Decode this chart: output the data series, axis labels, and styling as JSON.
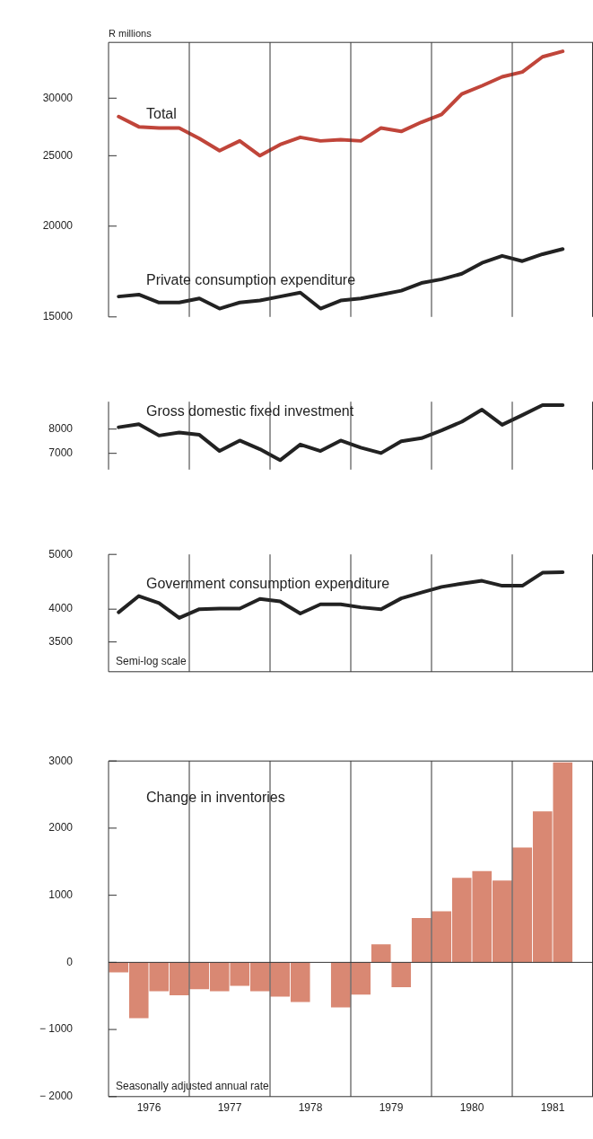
{
  "chart_data": [
    {
      "type": "line",
      "ylabel": "R millions",
      "log": true,
      "tick_labels": "y",
      "xlim": [
        1976,
        1982
      ],
      "ylim": [
        15000,
        35800
      ],
      "yticks": [
        15000,
        20000,
        25000,
        30000
      ],
      "x": [
        1976.125,
        1976.375,
        1976.625,
        1976.875,
        1977.125,
        1977.375,
        1977.625,
        1977.875,
        1978.125,
        1978.375,
        1978.625,
        1978.875,
        1979.125,
        1979.375,
        1979.625,
        1979.875,
        1980.125,
        1980.375,
        1980.625,
        1980.875,
        1981.125,
        1981.375,
        1981.625
      ],
      "ref_lines": [
        {
          "axis": "x",
          "value": 1977
        },
        {
          "axis": "x",
          "value": 1978
        },
        {
          "axis": "x",
          "value": 1979
        },
        {
          "axis": "x",
          "value": 1980
        },
        {
          "axis": "x",
          "value": 1981
        }
      ],
      "series": [
        {
          "name": "Total",
          "color": "#c0453a",
          "values": [
            28300,
            27400,
            27300,
            27300,
            26400,
            25400,
            26200,
            25000,
            25900,
            26500,
            26200,
            26300,
            26200,
            27300,
            27000,
            27800,
            28500,
            30400,
            31200,
            32100,
            32600,
            34200,
            34800
          ]
        },
        {
          "name": "Private consumption expenditure",
          "color": "#222222",
          "values": [
            16000,
            16100,
            15700,
            15700,
            15900,
            15400,
            15700,
            15800,
            16000,
            16200,
            15400,
            15800,
            15900,
            16100,
            16300,
            16700,
            16900,
            17200,
            17800,
            18200,
            17900,
            18300,
            18600
          ]
        }
      ]
    },
    {
      "type": "line",
      "log": true,
      "tick_labels": "y",
      "xlim": [
        1976,
        1982
      ],
      "ylim": [
        6400,
        9300
      ],
      "yticks": [
        7000,
        8000
      ],
      "x": [
        1976.125,
        1976.375,
        1976.625,
        1976.875,
        1977.125,
        1977.375,
        1977.625,
        1977.875,
        1978.125,
        1978.375,
        1978.625,
        1978.875,
        1979.125,
        1979.375,
        1979.625,
        1979.875,
        1980.125,
        1980.375,
        1980.625,
        1980.875,
        1981.125,
        1981.375,
        1981.625
      ],
      "ref_lines": [
        {
          "axis": "x",
          "value": 1977
        },
        {
          "axis": "x",
          "value": 1978
        },
        {
          "axis": "x",
          "value": 1979
        },
        {
          "axis": "x",
          "value": 1980
        },
        {
          "axis": "x",
          "value": 1981
        }
      ],
      "series": [
        {
          "name": "Gross domestic fixed investment",
          "color": "#222222",
          "values": [
            8080,
            8220,
            7720,
            7850,
            7750,
            7090,
            7510,
            7160,
            6740,
            7350,
            7090,
            7510,
            7220,
            7010,
            7480,
            7610,
            7940,
            8330,
            8900,
            8190,
            8640,
            9130,
            9130
          ]
        }
      ]
    },
    {
      "type": "line",
      "log": true,
      "tick_labels": "y",
      "xlim": [
        1976,
        1982
      ],
      "ylim": [
        3100,
        5000
      ],
      "yticks": [
        3500,
        4000,
        5000
      ],
      "x": [
        1976.125,
        1976.375,
        1976.625,
        1976.875,
        1977.125,
        1977.375,
        1977.625,
        1977.875,
        1978.125,
        1978.375,
        1978.625,
        1978.875,
        1979.125,
        1979.375,
        1979.625,
        1979.875,
        1980.125,
        1980.375,
        1980.625,
        1980.875,
        1981.125,
        1981.375,
        1981.625
      ],
      "ref_lines": [
        {
          "axis": "x",
          "value": 1977
        },
        {
          "axis": "x",
          "value": 1978
        },
        {
          "axis": "x",
          "value": 1979
        },
        {
          "axis": "x",
          "value": 1980
        },
        {
          "axis": "x",
          "value": 1981
        }
      ],
      "annotations": [
        "Semi-log scale"
      ],
      "series": [
        {
          "name": "Government consumption expenditure",
          "color": "#222222",
          "values": [
            3950,
            4220,
            4100,
            3860,
            4000,
            4010,
            4010,
            4170,
            4130,
            3930,
            4080,
            4080,
            4030,
            4000,
            4180,
            4280,
            4380,
            4440,
            4490,
            4400,
            4400,
            4640,
            4650
          ]
        }
      ]
    },
    {
      "type": "bar",
      "xlim": [
        1976,
        1982
      ],
      "ylim": [
        -2000,
        3000
      ],
      "xticks": [
        {
          "value": 1976.5,
          "label": "1976"
        },
        {
          "value": 1977.5,
          "label": "1977"
        },
        {
          "value": 1978.5,
          "label": "1978"
        },
        {
          "value": 1979.5,
          "label": "1979"
        },
        {
          "value": 1980.5,
          "label": "1980"
        },
        {
          "value": 1981.5,
          "label": "1981"
        }
      ],
      "yticks": [
        {
          "value": -2000,
          "label": "− 2000"
        },
        {
          "value": -1000,
          "label": "− 1000"
        },
        0,
        1000,
        2000,
        3000
      ],
      "x": [
        1976.125,
        1976.375,
        1976.625,
        1976.875,
        1977.125,
        1977.375,
        1977.625,
        1977.875,
        1978.125,
        1978.375,
        1978.625,
        1978.875,
        1979.125,
        1979.375,
        1979.625,
        1979.875,
        1980.125,
        1980.375,
        1980.625,
        1980.875,
        1981.125,
        1981.375,
        1981.625
      ],
      "ref_lines": [
        {
          "axis": "x",
          "value": 1977
        },
        {
          "axis": "x",
          "value": 1978
        },
        {
          "axis": "x",
          "value": 1979
        },
        {
          "axis": "x",
          "value": 1980
        },
        {
          "axis": "x",
          "value": 1981
        },
        {
          "axis": "y",
          "value": 0
        }
      ],
      "annotations": [
        "Seasonally adjusted annual rate"
      ],
      "series": [
        {
          "name": "Change in inventories",
          "color": "#d98873",
          "values": [
            -150,
            -830,
            -430,
            -490,
            -400,
            -430,
            -350,
            -430,
            -510,
            -590,
            0,
            -670,
            -480,
            270,
            -370,
            660,
            760,
            1260,
            1360,
            1220,
            1710,
            2250,
            2980
          ]
        }
      ]
    }
  ]
}
